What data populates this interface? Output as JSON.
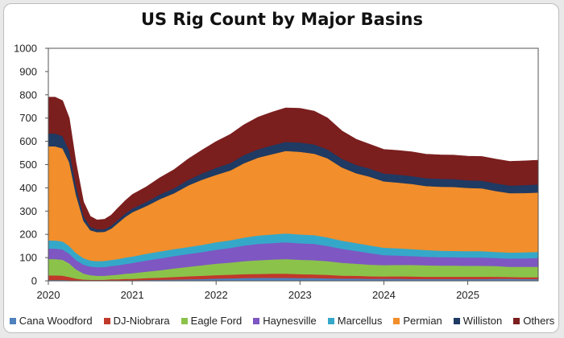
{
  "chart_data": {
    "type": "area",
    "stacked": true,
    "title": "US Rig Count by Major Basins",
    "xlabel": "",
    "ylabel": "",
    "ylim": [
      0,
      1000
    ],
    "yticks": [
      0,
      100,
      200,
      300,
      400,
      500,
      600,
      700,
      800,
      900,
      1000
    ],
    "xticks": [
      "2020",
      "2021",
      "2022",
      "2023",
      "2024",
      "2025"
    ],
    "xlim": [
      2020.0,
      2025.84
    ],
    "grid": false,
    "legend_position": "bottom",
    "x": [
      2020.0,
      2020.08,
      2020.17,
      2020.25,
      2020.33,
      2020.42,
      2020.5,
      2020.58,
      2020.67,
      2020.75,
      2020.83,
      2020.92,
      2021.0,
      2021.17,
      2021.33,
      2021.5,
      2021.67,
      2021.83,
      2022.0,
      2022.17,
      2022.33,
      2022.5,
      2022.67,
      2022.83,
      2023.0,
      2023.17,
      2023.33,
      2023.5,
      2023.67,
      2023.83,
      2024.0,
      2024.17,
      2024.33,
      2024.5,
      2024.67,
      2024.83,
      2025.0,
      2025.17,
      2025.33,
      2025.5,
      2025.67,
      2025.84
    ],
    "series": [
      {
        "name": "Cana Woodford",
        "color": "#4f81bd",
        "values": [
          4,
          4,
          4,
          3,
          2,
          1,
          1,
          1,
          1,
          2,
          2,
          3,
          3,
          4,
          5,
          6,
          7,
          8,
          10,
          11,
          12,
          13,
          13,
          13,
          12,
          12,
          11,
          10,
          10,
          9,
          9,
          9,
          8,
          8,
          8,
          8,
          8,
          8,
          9,
          9,
          8,
          8
        ]
      },
      {
        "name": "DJ-Niobrara",
        "color": "#c0392b",
        "values": [
          20,
          20,
          19,
          14,
          8,
          5,
          4,
          4,
          4,
          5,
          5,
          6,
          6,
          8,
          9,
          11,
          13,
          14,
          15,
          16,
          17,
          17,
          18,
          18,
          17,
          16,
          15,
          13,
          12,
          11,
          10,
          11,
          11,
          10,
          10,
          10,
          10,
          10,
          9,
          8,
          8,
          8
        ]
      },
      {
        "name": "Eagle Ford",
        "color": "#8bc34a",
        "values": [
          70,
          70,
          68,
          58,
          40,
          26,
          20,
          17,
          17,
          18,
          20,
          22,
          24,
          28,
          32,
          37,
          41,
          45,
          49,
          52,
          56,
          59,
          61,
          63,
          62,
          61,
          59,
          55,
          52,
          50,
          49,
          49,
          50,
          49,
          48,
          48,
          47,
          47,
          46,
          44,
          45,
          45
        ]
      },
      {
        "name": "Haynesville",
        "color": "#7e57c2",
        "values": [
          45,
          45,
          44,
          42,
          40,
          38,
          37,
          37,
          38,
          39,
          40,
          42,
          44,
          48,
          51,
          53,
          55,
          57,
          60,
          63,
          67,
          70,
          71,
          72,
          71,
          70,
          65,
          60,
          55,
          50,
          43,
          40,
          38,
          37,
          36,
          36,
          36,
          36,
          35,
          35,
          36,
          38
        ]
      },
      {
        "name": "Marcellus",
        "color": "#35a8c9",
        "values": [
          35,
          35,
          35,
          33,
          30,
          28,
          26,
          26,
          26,
          26,
          27,
          28,
          28,
          29,
          30,
          30,
          30,
          31,
          32,
          33,
          34,
          36,
          37,
          38,
          38,
          38,
          37,
          35,
          34,
          33,
          32,
          31,
          30,
          29,
          28,
          27,
          27,
          27,
          26,
          26,
          26,
          26
        ]
      },
      {
        "name": "Permian",
        "color": "#f28e2b",
        "values": [
          405,
          405,
          400,
          360,
          250,
          160,
          130,
          125,
          125,
          135,
          155,
          175,
          190,
          205,
          225,
          240,
          265,
          280,
          290,
          300,
          320,
          335,
          345,
          355,
          355,
          350,
          340,
          315,
          300,
          295,
          285,
          283,
          280,
          275,
          275,
          275,
          272,
          270,
          262,
          255,
          255,
          255
        ]
      },
      {
        "name": "Williston",
        "color": "#1f3a63",
        "values": [
          55,
          55,
          53,
          50,
          40,
          22,
          15,
          12,
          12,
          13,
          14,
          15,
          16,
          18,
          20,
          22,
          24,
          27,
          30,
          32,
          35,
          36,
          38,
          39,
          40,
          40,
          38,
          37,
          36,
          35,
          34,
          34,
          34,
          34,
          34,
          34,
          33,
          33,
          33,
          33,
          34,
          35
        ]
      },
      {
        "name": "Others",
        "color": "#7b1e1e",
        "values": [
          156,
          156,
          152,
          140,
          98,
          60,
          45,
          40,
          42,
          45,
          50,
          55,
          60,
          65,
          72,
          80,
          90,
          100,
          113,
          123,
          130,
          138,
          143,
          146,
          147,
          143,
          135,
          120,
          110,
          105,
          103,
          104,
          104,
          103,
          103,
          103,
          103,
          104,
          104,
          104,
          104,
          104
        ]
      }
    ]
  }
}
